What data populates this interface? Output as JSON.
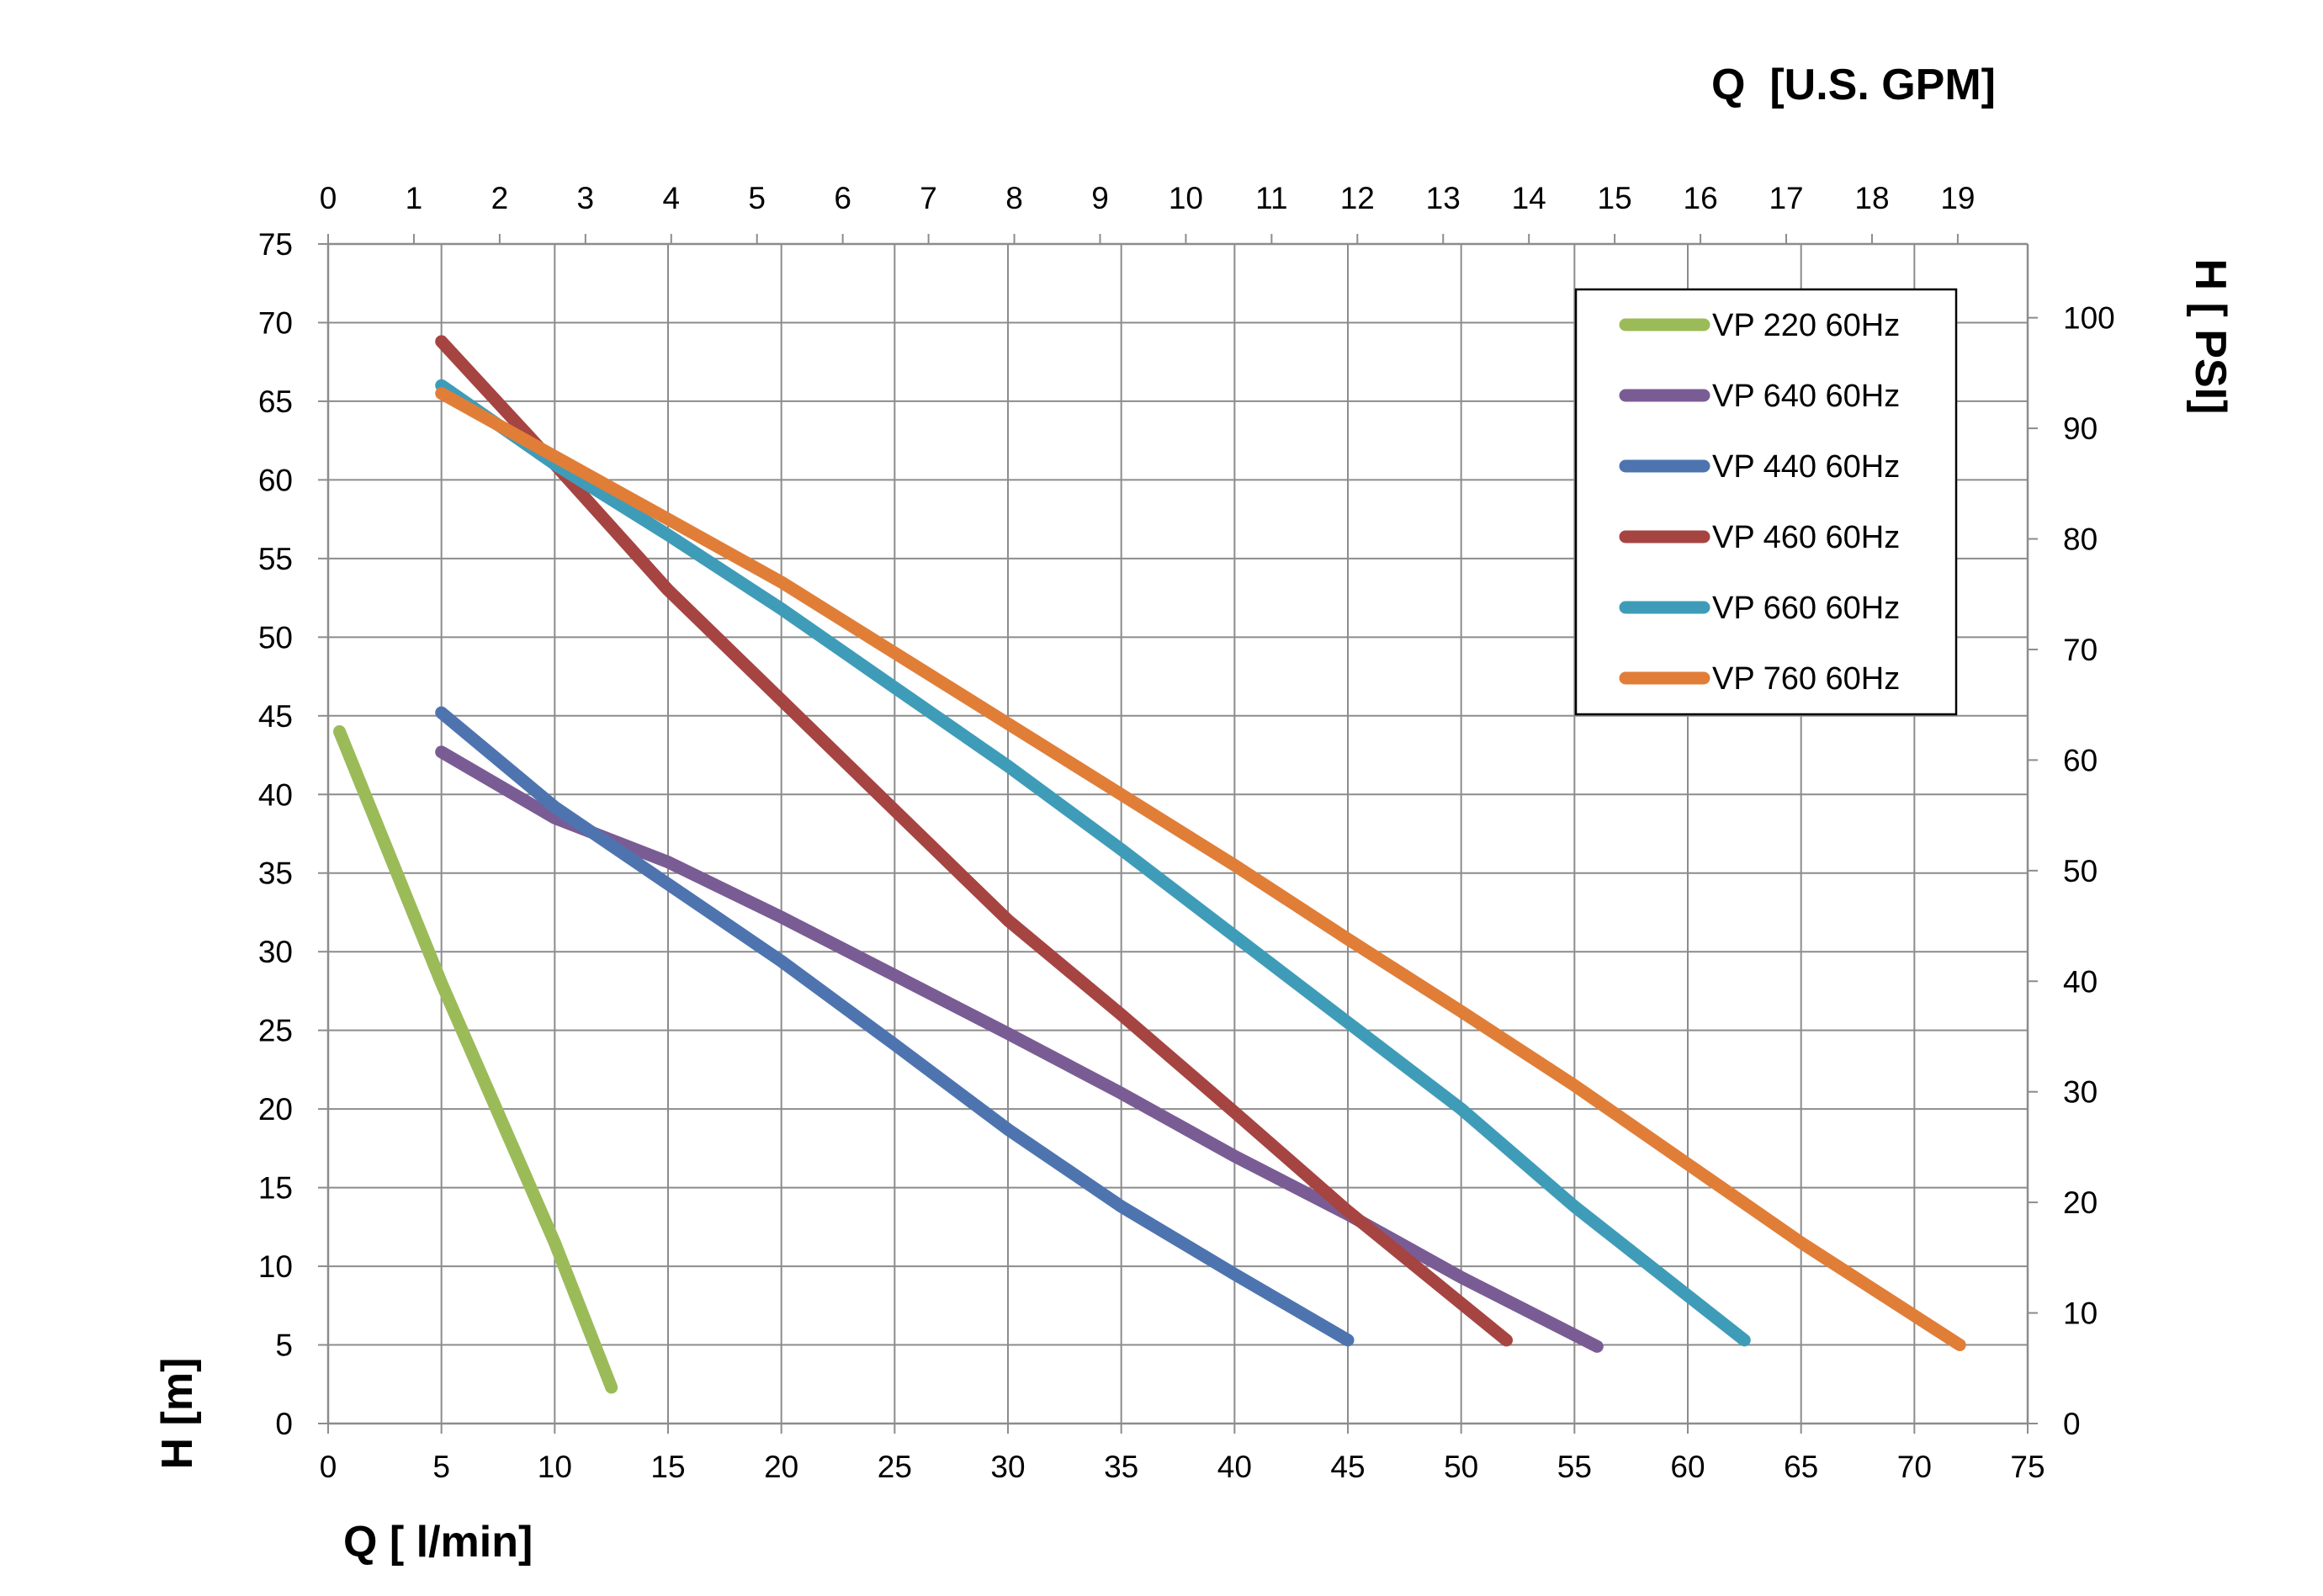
{
  "chart_data": {
    "type": "line",
    "grid": true,
    "legend_position": "top-right",
    "x_axis": {
      "label": "Q [ l/min]",
      "range": [
        0,
        75
      ],
      "ticks": [
        0,
        5,
        10,
        15,
        20,
        25,
        30,
        35,
        40,
        45,
        50,
        55,
        60,
        65,
        70,
        75
      ]
    },
    "x2_axis": {
      "label": "Q  [U.S. GPM]",
      "position": "top",
      "ticks": [
        0,
        1,
        2,
        3,
        4,
        5,
        6,
        7,
        8,
        9,
        10,
        11,
        12,
        13,
        14,
        15,
        16,
        17,
        18,
        19
      ],
      "lpm_per_unit": 3.785
    },
    "y_axis": {
      "label": "H [m]",
      "range": [
        0,
        75
      ],
      "ticks": [
        0,
        5,
        10,
        15,
        20,
        25,
        30,
        35,
        40,
        45,
        50,
        55,
        60,
        65,
        70,
        75
      ]
    },
    "y2_axis": {
      "label": "H [ PSI]",
      "position": "right",
      "ticks": [
        0,
        10,
        20,
        30,
        40,
        50,
        60,
        70,
        80,
        90,
        100
      ],
      "m_per_unit": 0.7031
    },
    "series": [
      {
        "name": "VP 220 60Hz",
        "color": "#9bbb59",
        "points": [
          [
            0.5,
            44
          ],
          [
            5,
            28
          ],
          [
            10,
            11.5
          ],
          [
            12.5,
            2.3
          ]
        ]
      },
      {
        "name": "VP 640 60Hz",
        "color": "#7a5c94",
        "points": [
          [
            5,
            42.7
          ],
          [
            10,
            38.5
          ],
          [
            15,
            35.7
          ],
          [
            20,
            32.2
          ],
          [
            25,
            28.5
          ],
          [
            30,
            24.8
          ],
          [
            35,
            21
          ],
          [
            40,
            17
          ],
          [
            45,
            13.3
          ],
          [
            50,
            9.3
          ],
          [
            56,
            4.9
          ]
        ]
      },
      {
        "name": "VP 440 60Hz",
        "color": "#4e74b0",
        "points": [
          [
            5,
            45.2
          ],
          [
            10,
            39.2
          ],
          [
            15,
            34.3
          ],
          [
            20,
            29.4
          ],
          [
            25,
            24.1
          ],
          [
            30,
            18.7
          ],
          [
            35,
            13.8
          ],
          [
            40,
            9.5
          ],
          [
            45,
            5.3
          ]
        ]
      },
      {
        "name": "VP 460 60Hz",
        "color": "#a64442",
        "points": [
          [
            5,
            68.8
          ],
          [
            10,
            61
          ],
          [
            15,
            53
          ],
          [
            20,
            46
          ],
          [
            25,
            39
          ],
          [
            30,
            32
          ],
          [
            35,
            26
          ],
          [
            40,
            19.8
          ],
          [
            45,
            13.5
          ],
          [
            52,
            5.3
          ]
        ]
      },
      {
        "name": "VP 660 60Hz",
        "color": "#3f9cb8",
        "points": [
          [
            5,
            66
          ],
          [
            10,
            61
          ],
          [
            15,
            56.5
          ],
          [
            20,
            51.8
          ],
          [
            25,
            46.8
          ],
          [
            30,
            41.8
          ],
          [
            35,
            36.5
          ],
          [
            40,
            31
          ],
          [
            45,
            25.5
          ],
          [
            50,
            20
          ],
          [
            55,
            13.8
          ],
          [
            62.5,
            5.3
          ]
        ]
      },
      {
        "name": "VP 760 60Hz",
        "color": "#e07e38",
        "points": [
          [
            5,
            65.5
          ],
          [
            10,
            61.5
          ],
          [
            15,
            57.5
          ],
          [
            20,
            53.5
          ],
          [
            25,
            49
          ],
          [
            30,
            44.5
          ],
          [
            35,
            40
          ],
          [
            40,
            35.5
          ],
          [
            45,
            30.8
          ],
          [
            50,
            26.2
          ],
          [
            55,
            21.5
          ],
          [
            60,
            16.5
          ],
          [
            65,
            11.5
          ],
          [
            72,
            5
          ]
        ]
      }
    ]
  }
}
